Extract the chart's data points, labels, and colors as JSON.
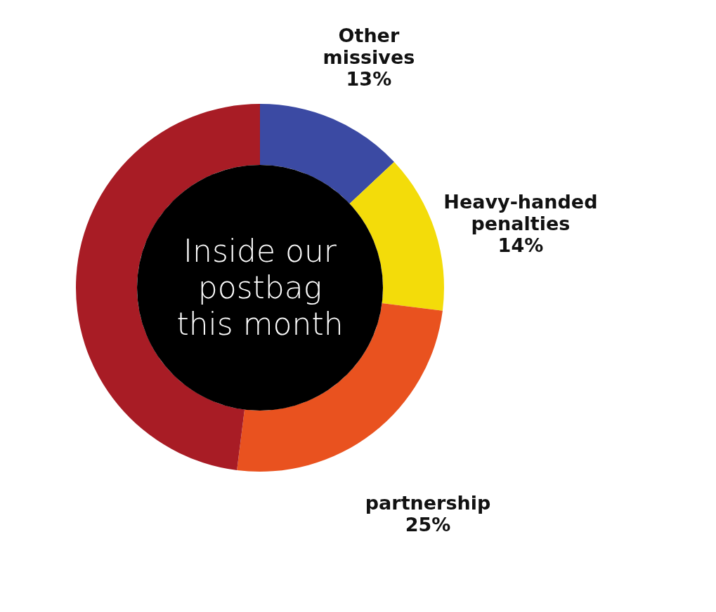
{
  "chart_data": {
    "type": "donut",
    "title": "Inside our postbag this month",
    "categories": [
      "Other missives",
      "Heavy-handed penalties",
      "partnership",
      null
    ],
    "values": [
      13,
      14,
      25,
      48
    ],
    "colors": [
      "#3b4aa3",
      "#f3dc0a",
      "#e9521f",
      "#a81c25"
    ],
    "value_labels": [
      "13%",
      "14%",
      "25%",
      null
    ]
  }
}
